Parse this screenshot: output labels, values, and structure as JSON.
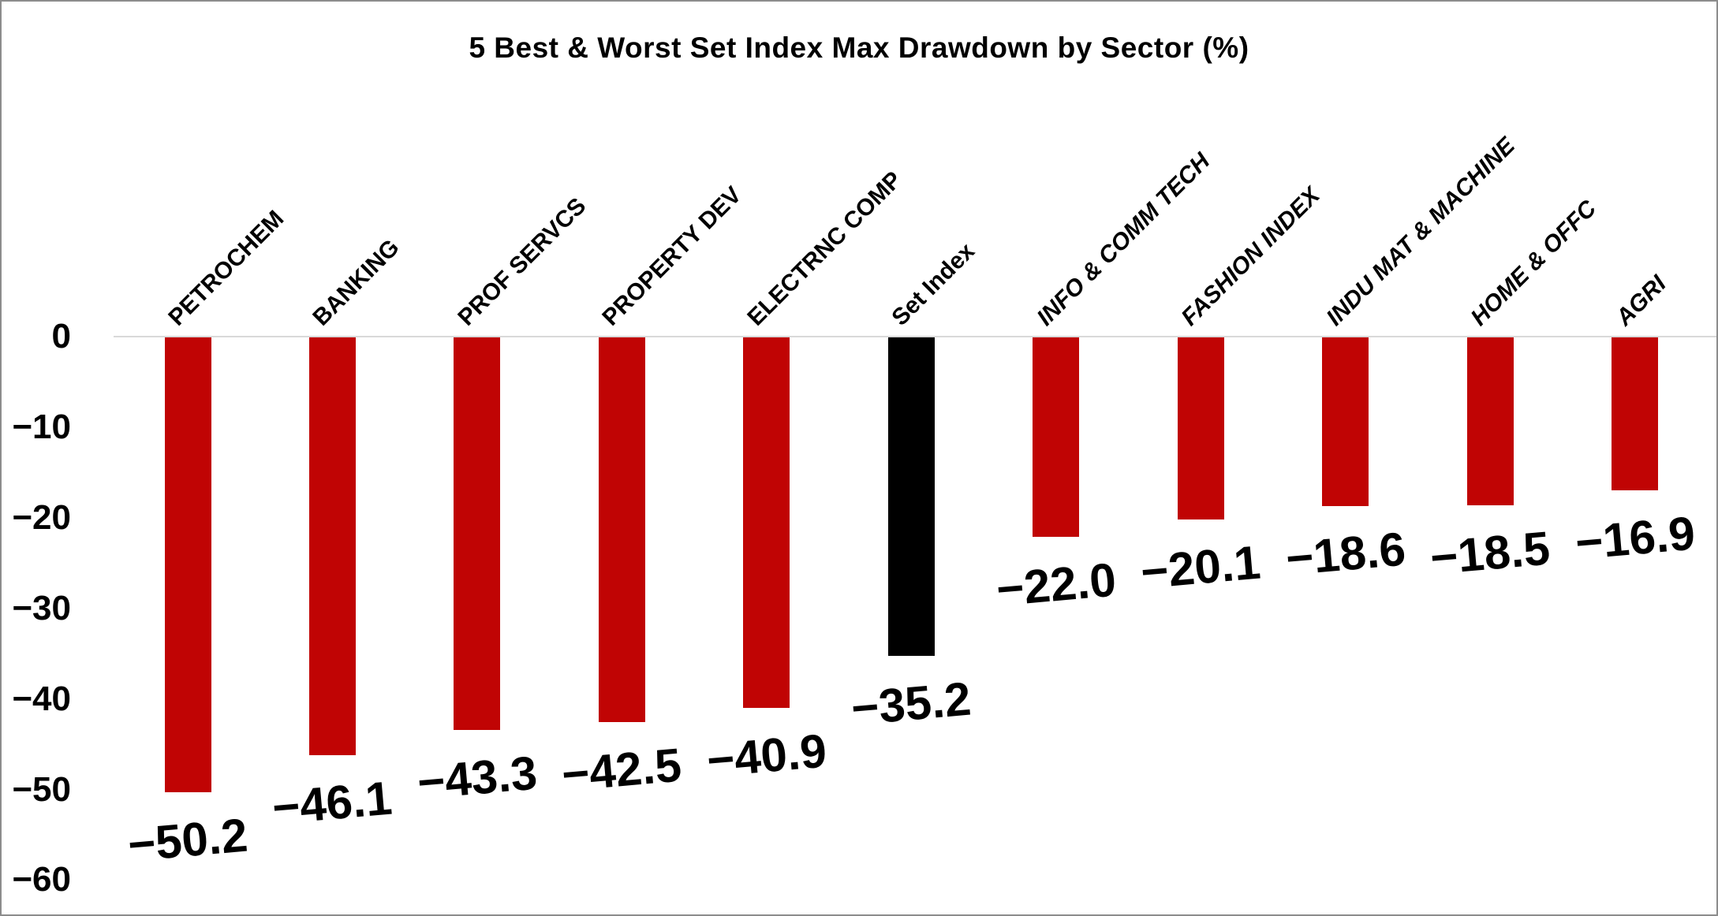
{
  "chart_data": {
    "type": "bar",
    "title": "5 Best & Worst Set Index Max Drawdown by Sector (%)",
    "categories": [
      "PETROCHEM",
      "BANKING",
      "PROF SERVCS",
      "PROPERTY DEV",
      "ELECTRNC COMP",
      "Set Index",
      "INFO & COMM TECH",
      "FASHION INDEX",
      "INDU MAT & MACHINE",
      "HOME & OFFC",
      "AGRI"
    ],
    "values": [
      -50.2,
      -46.1,
      -43.3,
      -42.5,
      -40.9,
      -35.2,
      -22.0,
      -20.1,
      -18.6,
      -18.5,
      -16.9
    ],
    "value_labels": [
      "−50.2",
      "−46.1",
      "−43.3",
      "−42.5",
      "−40.9",
      "−35.2",
      "−22.0",
      "−20.1",
      "−18.6",
      "−18.5",
      "−16.9"
    ],
    "groups": [
      "worst",
      "worst",
      "worst",
      "worst",
      "worst",
      "index",
      "best",
      "best",
      "best",
      "best",
      "best"
    ],
    "series": [
      {
        "name": "Max Drawdown (%)",
        "values": [
          -50.2,
          -46.1,
          -43.3,
          -42.5,
          -40.9,
          -35.2,
          -22.0,
          -20.1,
          -18.6,
          -18.5,
          -16.9
        ]
      }
    ],
    "xlabel": "",
    "ylabel": "",
    "y_axis": {
      "tick_values": [
        0,
        -10,
        -20,
        -30,
        -40,
        -50,
        -60
      ],
      "tick_labels": [
        "0",
        "−10",
        "−20",
        "−30",
        "−40",
        "−50",
        "−60"
      ],
      "range": [
        0,
        -60
      ]
    },
    "grid": "none",
    "legend": "none",
    "bar_orientation": "vertical-negative",
    "colors": {
      "sector_bar": "#C00404",
      "set_index_bar": "#000000",
      "zero_line": "#D9D9D9",
      "text": "#000000",
      "frame_border": "#8C8C8C",
      "background": "#FFFFFF"
    }
  }
}
